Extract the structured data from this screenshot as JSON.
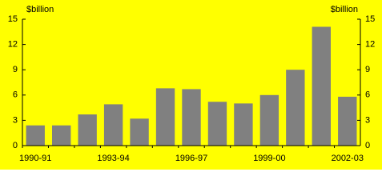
{
  "chart_data": {
    "type": "bar",
    "y_label": "$billion",
    "y2_label": "$billion",
    "categories": [
      "1990-91",
      null,
      null,
      "1993-94",
      null,
      null,
      "1996-97",
      null,
      null,
      "1999-00",
      null,
      null,
      "2002-03"
    ],
    "values": [
      2.4,
      2.4,
      3.7,
      4.9,
      3.2,
      6.8,
      6.7,
      5.2,
      5.0,
      6.0,
      9.0,
      14.1,
      5.8
    ],
    "color": "#808080",
    "background": "#ffff00",
    "ylim": [
      0,
      15
    ],
    "yticks": [
      0,
      3,
      6,
      9,
      12,
      15
    ],
    "y2lim": [
      0,
      15
    ],
    "y2ticks": [
      0,
      3,
      6,
      9,
      12,
      15
    ]
  }
}
